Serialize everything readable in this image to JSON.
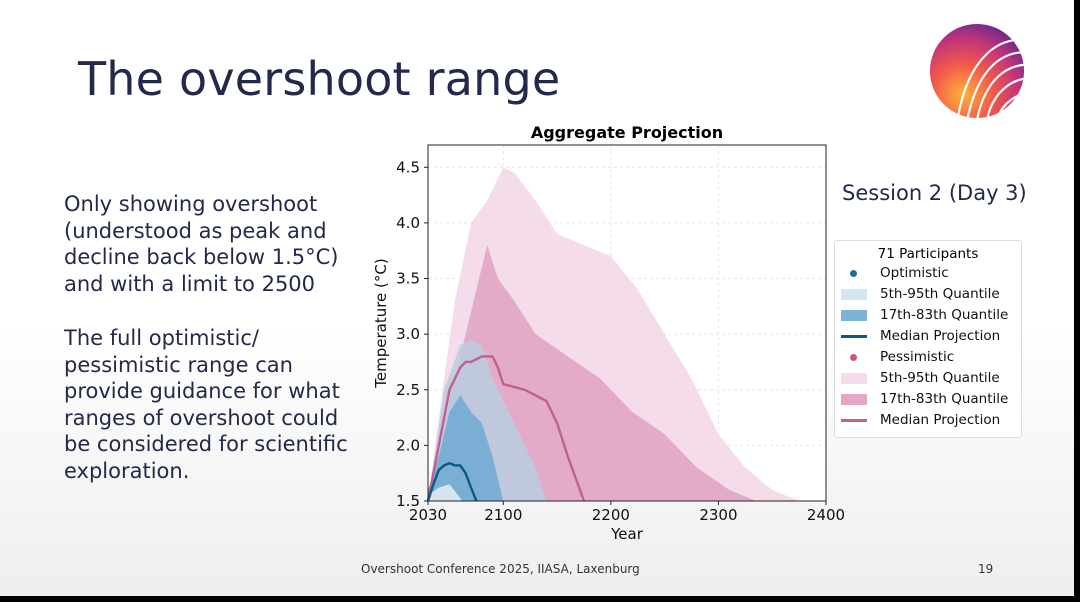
{
  "slide": {
    "title": "The overshoot range",
    "paragraph1": "Only showing overshoot (understood as peak and decline back below 1.5°C) and with a limit to 2500",
    "paragraph2": "The full optimistic/ pessimistic range can provide guidance for what ranges of overshoot could be considered for scientific exploration.",
    "session": "Session 2 (Day 3)",
    "footer": "Overshoot Conference 2025, IIASA, Laxenburg",
    "page_number": "19",
    "logo_icon": "rainbow-arcs-logo"
  },
  "legend": {
    "title": "71 Participants",
    "items": [
      {
        "label": "Optimistic",
        "kind": "dot",
        "color": "#1a6d9c"
      },
      {
        "label": "5th-95th Quantile",
        "kind": "box",
        "color": "#d4e6f1"
      },
      {
        "label": "17th-83th Quantile",
        "kind": "box",
        "color": "#7fb3d5"
      },
      {
        "label": "Median Projection",
        "kind": "line",
        "color": "#0b5a85"
      },
      {
        "label": "Pessimistic",
        "kind": "dot",
        "color": "#c2578a"
      },
      {
        "label": "5th-95th Quantile",
        "kind": "box",
        "color": "#f5dcea"
      },
      {
        "label": "17th-83th Quantile",
        "kind": "box",
        "color": "#e3a8c7"
      },
      {
        "label": "Median Projection",
        "kind": "line",
        "color": "#c26190"
      }
    ]
  },
  "chart_data": {
    "type": "area",
    "title": "Aggregate Projection",
    "xlabel": "Year",
    "ylabel": "Temperature (°C)",
    "xlim": [
      2030,
      2400
    ],
    "ylim": [
      1.5,
      4.7
    ],
    "xticks": [
      2030,
      2100,
      2200,
      2300,
      2400
    ],
    "yticks": [
      1.5,
      2.0,
      2.5,
      3.0,
      3.5,
      4.0,
      4.5
    ],
    "ytick_labels": [
      "1.5",
      "2.0",
      "2.5",
      "3.0",
      "3.5",
      "4.0",
      "4.5"
    ],
    "grid": true,
    "series": [
      {
        "name": "Pessimistic 5th-95th Quantile",
        "kind": "band",
        "color": "#f3d6e6",
        "x": [
          2030,
          2045,
          2055,
          2070,
          2085,
          2100,
          2110,
          2130,
          2150,
          2175,
          2200,
          2225,
          2250,
          2275,
          2300,
          2325,
          2350,
          2375
        ],
        "lower": [
          1.5,
          1.5,
          1.5,
          1.5,
          1.5,
          1.5,
          1.5,
          1.5,
          1.5,
          1.5,
          1.5,
          1.5,
          1.5,
          1.5,
          1.5,
          1.5,
          1.5,
          1.5
        ],
        "upper": [
          1.5,
          2.6,
          3.3,
          4.0,
          4.2,
          4.5,
          4.45,
          4.2,
          3.9,
          3.8,
          3.7,
          3.4,
          3.0,
          2.6,
          2.1,
          1.8,
          1.6,
          1.5
        ]
      },
      {
        "name": "Pessimistic 17th-83th Quantile",
        "kind": "band",
        "color": "#e0a2c3",
        "x": [
          2030,
          2040,
          2055,
          2070,
          2080,
          2085,
          2095,
          2110,
          2130,
          2160,
          2190,
          2220,
          2250,
          2280,
          2310,
          2335
        ],
        "lower": [
          1.5,
          1.5,
          1.5,
          1.5,
          1.5,
          1.5,
          1.5,
          1.5,
          1.5,
          1.5,
          1.5,
          1.5,
          1.5,
          1.5,
          1.5,
          1.5
        ],
        "upper": [
          1.5,
          2.0,
          2.6,
          3.2,
          3.6,
          3.8,
          3.5,
          3.3,
          3.0,
          2.8,
          2.6,
          2.3,
          2.1,
          1.8,
          1.6,
          1.5
        ]
      },
      {
        "name": "Optimistic 5th-95th Quantile",
        "kind": "band",
        "color": "#b9cde0",
        "x": [
          2030,
          2045,
          2060,
          2070,
          2080,
          2090,
          2100,
          2110,
          2120,
          2130,
          2140
        ],
        "lower": [
          1.5,
          1.5,
          1.5,
          1.5,
          1.5,
          1.5,
          1.5,
          1.5,
          1.5,
          1.5,
          1.5
        ],
        "upper": [
          1.5,
          2.5,
          2.9,
          2.95,
          2.9,
          2.6,
          2.4,
          2.2,
          2.0,
          1.8,
          1.5
        ]
      },
      {
        "name": "Optimistic 17th-83th Quantile",
        "kind": "band",
        "color": "#6ea9d2",
        "x": [
          2030,
          2040,
          2050,
          2060,
          2070,
          2080,
          2090,
          2100
        ],
        "lower": [
          1.5,
          1.5,
          1.5,
          1.5,
          1.5,
          1.5,
          1.5,
          1.5
        ],
        "upper": [
          1.6,
          1.9,
          2.3,
          2.45,
          2.3,
          2.2,
          1.9,
          1.5
        ]
      },
      {
        "name": "Pessimistic Median Projection",
        "kind": "line",
        "color": "#c06090",
        "x": [
          2030,
          2040,
          2050,
          2060,
          2065,
          2070,
          2080,
          2090,
          2095,
          2100,
          2120,
          2140,
          2150,
          2160,
          2175
        ],
        "y": [
          1.5,
          2.0,
          2.5,
          2.7,
          2.75,
          2.75,
          2.8,
          2.8,
          2.7,
          2.55,
          2.5,
          2.4,
          2.2,
          1.9,
          1.5
        ]
      },
      {
        "name": "Optimistic 5th-95th lower patch",
        "kind": "band",
        "color": "#e8edf2",
        "x": [
          2030,
          2040,
          2050,
          2058,
          2062
        ],
        "lower": [
          1.5,
          1.5,
          1.5,
          1.5,
          1.5
        ],
        "upper": [
          1.55,
          1.62,
          1.65,
          1.55,
          1.5
        ]
      },
      {
        "name": "Optimistic Median Projection",
        "kind": "line",
        "color": "#0b5a85",
        "x": [
          2030,
          2035,
          2040,
          2045,
          2050,
          2055,
          2060,
          2065,
          2070,
          2075
        ],
        "y": [
          1.5,
          1.65,
          1.78,
          1.82,
          1.84,
          1.82,
          1.82,
          1.75,
          1.62,
          1.5
        ]
      }
    ]
  }
}
